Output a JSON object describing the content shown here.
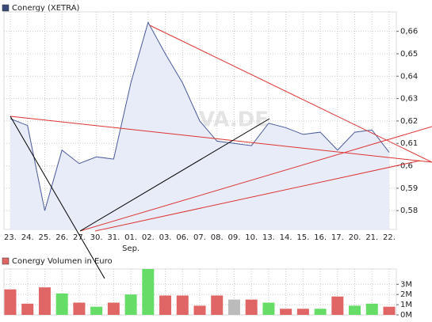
{
  "watermark": "ARIVA.DE",
  "chart_data": [
    {
      "type": "area-line",
      "title": "Conergy (XETRA)",
      "legend_color": "#3a4a7a",
      "categories": [
        "23.",
        "24.",
        "25.",
        "26.",
        "27.",
        "30.",
        "31.",
        "01.",
        "02.",
        "03.",
        "06.",
        "07.",
        "08.",
        "09.",
        "10.",
        "13.",
        "14.",
        "15.",
        "16.",
        "17.",
        "20.",
        "21.",
        "22."
      ],
      "x_group_label": "Sep.",
      "values": [
        0.621,
        0.618,
        0.58,
        0.607,
        0.601,
        0.604,
        0.603,
        0.637,
        0.664,
        0.65,
        0.637,
        0.62,
        0.611,
        0.61,
        0.609,
        0.619,
        0.617,
        0.614,
        0.615,
        0.607,
        0.615,
        0.616,
        0.606
      ],
      "color": "#4a5a9a",
      "fill": "#e8ecf8",
      "ylim": [
        0.5716,
        0.6687
      ],
      "yticks": [
        {
          "value": 0.58,
          "label": "0,58"
        },
        {
          "value": 0.59,
          "label": "0,59"
        },
        {
          "value": 0.6,
          "label": "0,6"
        },
        {
          "value": 0.61,
          "label": "0,61"
        },
        {
          "value": 0.62,
          "label": "0,62"
        },
        {
          "value": 0.63,
          "label": "0,63"
        },
        {
          "value": 0.64,
          "label": "0,64"
        },
        {
          "value": 0.65,
          "label": "0,65"
        },
        {
          "value": 0.66,
          "label": "0,66"
        }
      ],
      "grid": true
    },
    {
      "type": "bar",
      "title": "Conergy Volumen in Euro",
      "legend_color": "#e06666",
      "values": [
        2.5,
        1.1,
        2.7,
        2.1,
        1.2,
        0.8,
        1.2,
        2.0,
        4.5,
        1.9,
        1.9,
        0.9,
        1.9,
        1.5,
        1.5,
        1.2,
        0.6,
        0.6,
        0.6,
        1.8,
        0.9,
        1.1,
        0.8
      ],
      "colors": [
        "#e06666",
        "#e06666",
        "#e06666",
        "#66dd66",
        "#e06666",
        "#66dd66",
        "#e06666",
        "#66dd66",
        "#66dd66",
        "#e06666",
        "#e06666",
        "#e06666",
        "#e06666",
        "#bbbbbb",
        "#e06666",
        "#66dd66",
        "#e06666",
        "#e06666",
        "#66dd66",
        "#e06666",
        "#66dd66",
        "#66dd66",
        "#e06666"
      ],
      "ylim": [
        0,
        4.5
      ],
      "yticks": [
        {
          "value": 0,
          "label": "0M"
        },
        {
          "value": 1,
          "label": "1M"
        },
        {
          "value": 2,
          "label": "2M"
        },
        {
          "value": 3,
          "label": "3M"
        }
      ],
      "grid": true
    }
  ]
}
